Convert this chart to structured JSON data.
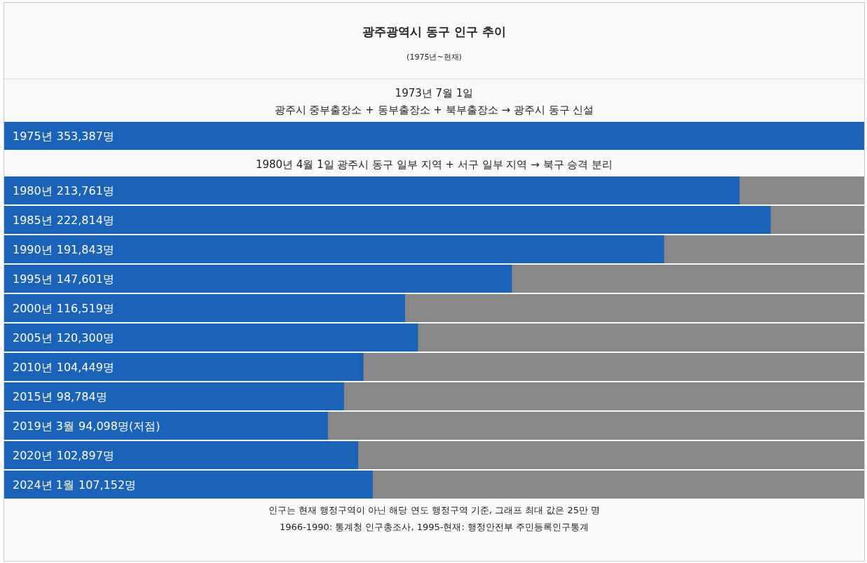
{
  "chart_data": [
    {
      "type": "bar",
      "orientation": "horizontal",
      "title": "광주광역시 동구 인구 추이",
      "subtitle": "(1975년~현재)",
      "annotations": [
        "1973년 7월 1일",
        "광주시 중부출장소 + 동부출장소 + 북부출장소 → 광주시 동구 신설"
      ],
      "categories": [
        "1975년"
      ],
      "values": [
        353387
      ],
      "value_labels": [
        "353,387명"
      ],
      "color": "#1b63b9"
    },
    {
      "type": "bar",
      "orientation": "horizontal",
      "subtitle": "1980년 4월 1일 광주시 동구 일부 지역 + 서구 일부 지역 → 북구 승격 분리",
      "annotations": [
        "인구는 현재 행정구역이 아닌 해당 연도 행정구역 기준, 그래프 최대 값은 25만 명",
        "1966-1990: 통계청 인구총조사, 1995-현재: 행정안전부 주민등록인구통계"
      ],
      "categories": [
        "1980년",
        "1985년",
        "1990년",
        "1995년",
        "2000년",
        "2005년",
        "2010년",
        "2015년",
        "2019년 3월",
        "2020년",
        "2024년 1월"
      ],
      "values": [
        213761,
        222814,
        191843,
        147601,
        116519,
        120300,
        104449,
        98784,
        94098,
        102897,
        107152
      ],
      "value_labels": [
        "213,761명",
        "222,814명",
        "191,843명",
        "147,601명",
        "116,519명",
        "120,300명",
        "104,449명",
        "98,784명",
        "94,098명(저점)",
        "102,897명",
        "107,152명"
      ],
      "color": "#1b63b9",
      "xlim": [
        0,
        250000
      ]
    }
  ]
}
